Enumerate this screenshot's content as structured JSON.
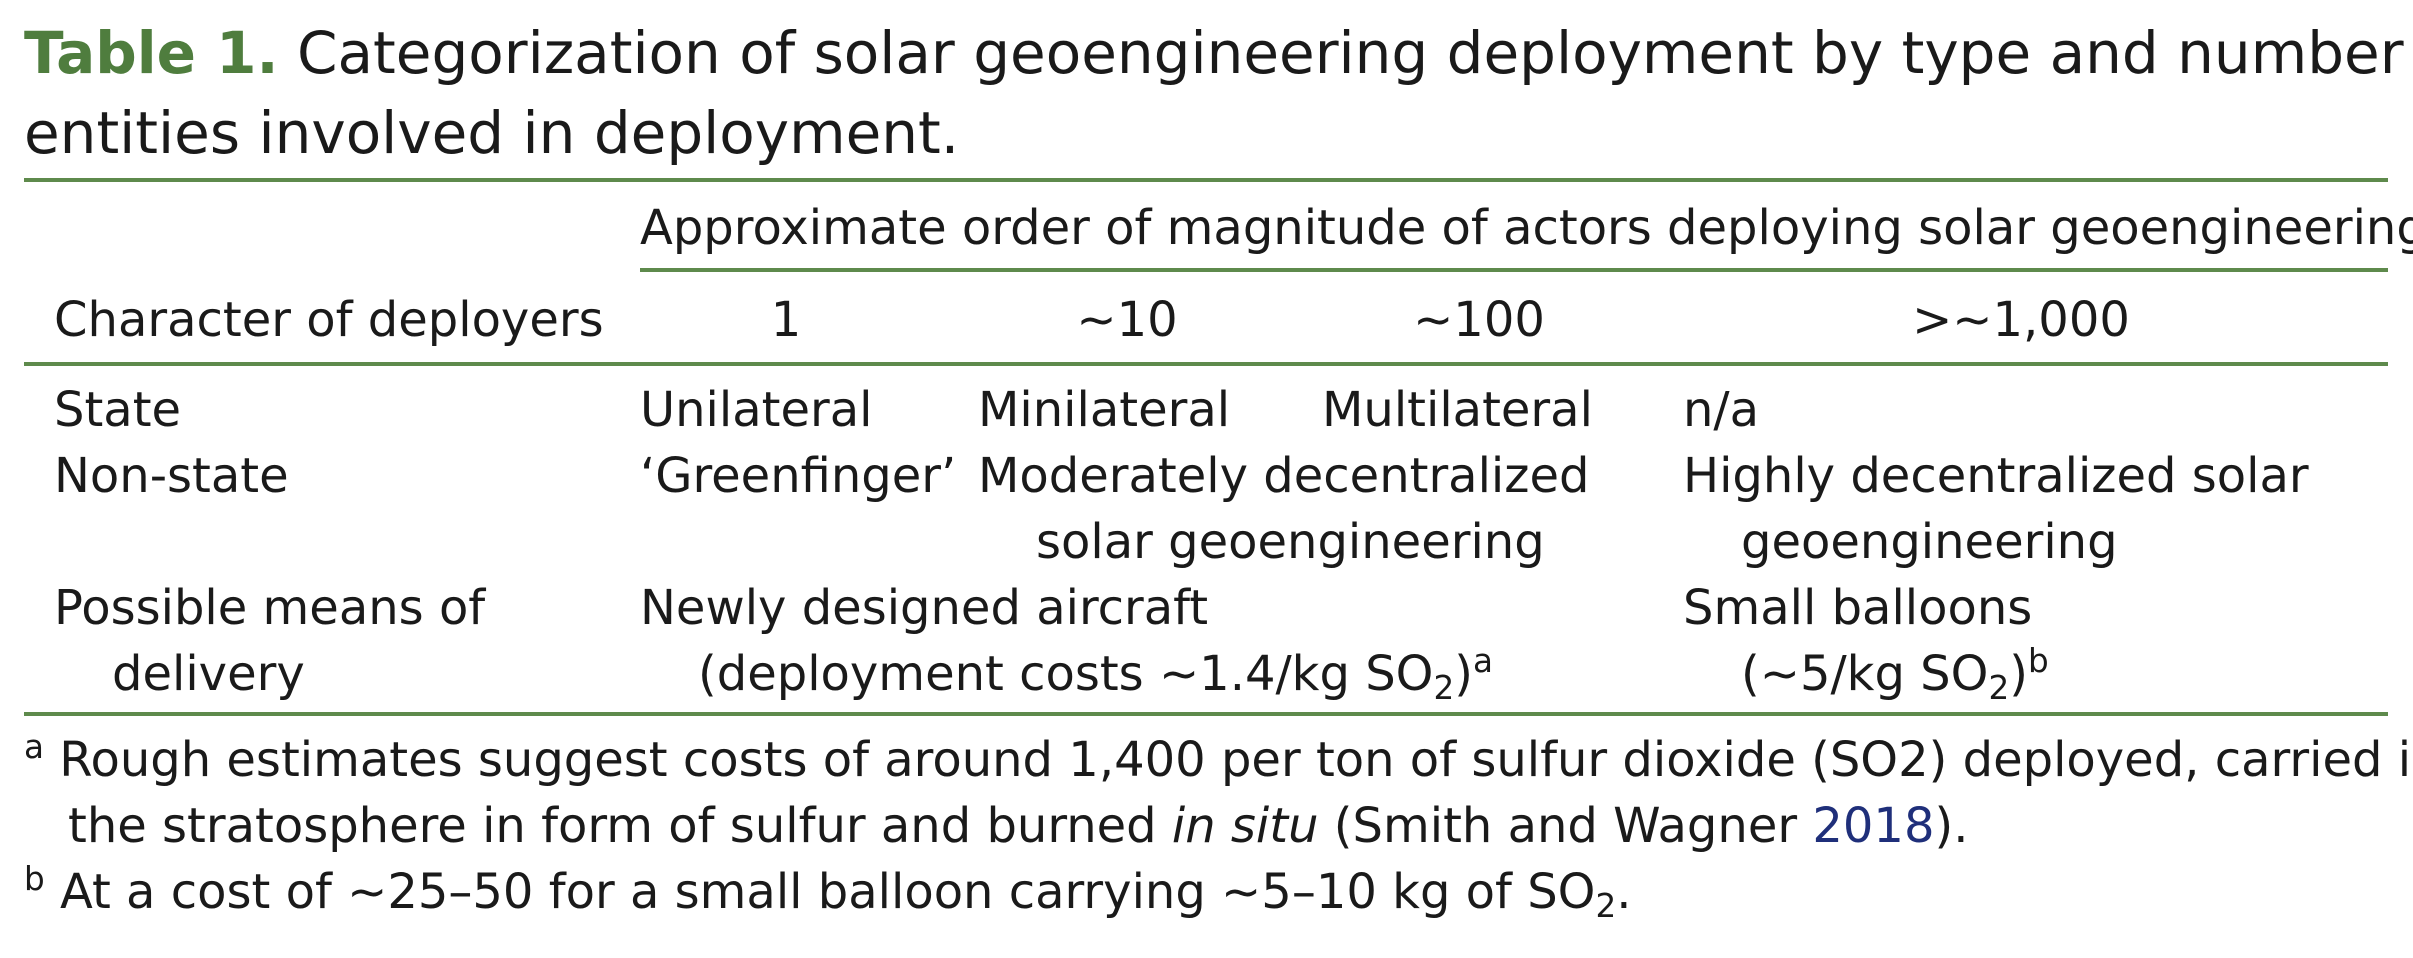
{
  "caption": {
    "label": "Table 1.",
    "line1_rest": "Categorization of solar geoengineering deployment by type and number of",
    "line2": "entities involved in deployment."
  },
  "table": {
    "span_header": "Approximate order of magnitude of actors deploying solar geoengineering",
    "row_header": "Character of deployers",
    "columns": [
      "1",
      "~10",
      "~100",
      ">~1,000"
    ],
    "rows": {
      "state": {
        "label": "State",
        "c1": "Unilateral",
        "c2": "Minilateral",
        "c3": "Multilateral",
        "c4": "n/a"
      },
      "nonstate": {
        "label": "Non-state",
        "c1": "‘Greenfinger’",
        "mid_line1": "Moderately decentralized",
        "mid_line2": "solar geoengineering",
        "c4_line1": "Highly decentralized solar",
        "c4_line2": "geoengineering"
      },
      "delivery": {
        "label_line1": "Possible means of",
        "label_line2": "delivery",
        "mid_line1": "Newly designed aircraft",
        "mid_line2_pre": "(deployment costs ~1.4/kg SO",
        "mid_line2_sub": "2",
        "mid_line2_post": ")",
        "mid_line2_sup": "a",
        "c4_line1": "Small balloons",
        "c4_line2_pre": "(~5/kg SO",
        "c4_line2_sub": "2",
        "c4_line2_post": ")",
        "c4_line2_sup": "b"
      }
    }
  },
  "footnotes": {
    "a": {
      "marker": "a",
      "line1": "Rough estimates suggest costs of around 1,400 per ton of sulfur dioxide (SO2) deployed, carried into",
      "line2_pre": "the stratosphere in form of sulfur and burned ",
      "line2_ital": "in situ",
      "line2_mid": " (Smith and Wagner ",
      "line2_link": "2018",
      "line2_post": ")."
    },
    "b": {
      "marker": "b",
      "text_pre": "At a cost of ~25–50 for a small balloon carrying ~5–10 kg of SO",
      "text_sub": "2",
      "text_post": "."
    }
  },
  "colors": {
    "accent": "#4f7d3e",
    "rule": "#5e8a4c",
    "link": "#1f2f7a",
    "text": "#1a1a1a"
  }
}
